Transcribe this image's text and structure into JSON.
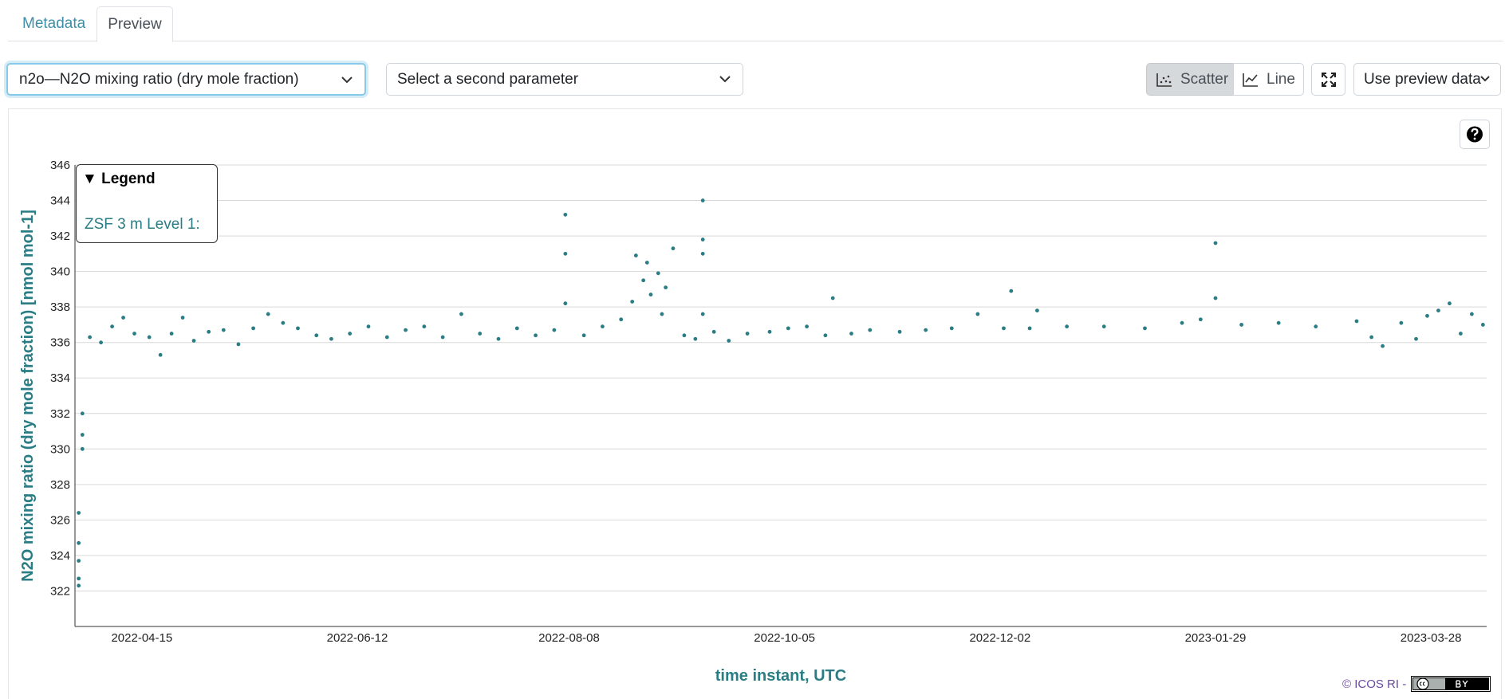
{
  "tabs": [
    {
      "label": "Metadata"
    },
    {
      "label": "Preview"
    }
  ],
  "controls": {
    "param1": "n2o—N2O mixing ratio (dry mole fraction)",
    "param2": "Select a second parameter",
    "scatter_label": "Scatter",
    "line_label": "Line",
    "preview_data_label": "Use preview data"
  },
  "icons": {
    "chevron": "chevron-down-icon",
    "scatter": "scatter-chart-icon",
    "line": "line-chart-icon",
    "expand": "expand-icon",
    "help": "question-circle-icon"
  },
  "legend": {
    "title": "▼ Legend",
    "entry": "ZSF 3 m Level 1:"
  },
  "credit": "© ICOS RI -",
  "colors": {
    "series": "#2a7d84",
    "tab_link": "#3f8fa6",
    "credit": "#6a4aa1"
  },
  "chart_data": {
    "type": "scatter",
    "title": "",
    "xlabel": "time instant, UTC",
    "ylabel": "N2O mixing ratio (dry mole fraction) [nmol mol-1]",
    "ylim": [
      320,
      346
    ],
    "yticks": [
      322,
      324,
      326,
      328,
      330,
      332,
      334,
      336,
      338,
      340,
      342,
      344,
      346
    ],
    "xlim": [
      "2022-03-28",
      "2023-04-12"
    ],
    "xticks": [
      "2022-04-15",
      "2022-06-12",
      "2022-08-08",
      "2022-10-05",
      "2022-12-02",
      "2023-01-29",
      "2023-03-28"
    ],
    "grid": true,
    "legend_position": "top-left",
    "series": [
      {
        "name": "ZSF 3 m Level 1",
        "points": [
          [
            "2022-03-29",
            322.3
          ],
          [
            "2022-03-29",
            322.7
          ],
          [
            "2022-03-29",
            323.7
          ],
          [
            "2022-03-29",
            324.7
          ],
          [
            "2022-03-29",
            326.4
          ],
          [
            "2022-03-30",
            330.0
          ],
          [
            "2022-03-30",
            330.8
          ],
          [
            "2022-03-30",
            332.0
          ],
          [
            "2022-04-01",
            336.3
          ],
          [
            "2022-04-04",
            336.0
          ],
          [
            "2022-04-07",
            336.9
          ],
          [
            "2022-04-10",
            337.4
          ],
          [
            "2022-04-13",
            336.5
          ],
          [
            "2022-04-17",
            336.3
          ],
          [
            "2022-04-20",
            335.3
          ],
          [
            "2022-04-23",
            336.5
          ],
          [
            "2022-04-26",
            337.4
          ],
          [
            "2022-04-29",
            336.1
          ],
          [
            "2022-05-03",
            336.6
          ],
          [
            "2022-05-07",
            336.7
          ],
          [
            "2022-05-11",
            335.9
          ],
          [
            "2022-05-15",
            336.8
          ],
          [
            "2022-05-19",
            337.6
          ],
          [
            "2022-05-23",
            337.1
          ],
          [
            "2022-05-27",
            336.8
          ],
          [
            "2022-06-01",
            336.4
          ],
          [
            "2022-06-05",
            336.2
          ],
          [
            "2022-06-10",
            336.5
          ],
          [
            "2022-06-15",
            336.9
          ],
          [
            "2022-06-20",
            336.3
          ],
          [
            "2022-06-25",
            336.7
          ],
          [
            "2022-06-30",
            336.9
          ],
          [
            "2022-07-05",
            336.3
          ],
          [
            "2022-07-10",
            337.6
          ],
          [
            "2022-07-15",
            336.5
          ],
          [
            "2022-07-20",
            336.2
          ],
          [
            "2022-07-25",
            336.8
          ],
          [
            "2022-07-30",
            336.4
          ],
          [
            "2022-08-04",
            336.7
          ],
          [
            "2022-08-07",
            338.2
          ],
          [
            "2022-08-07",
            341.0
          ],
          [
            "2022-08-07",
            343.2
          ],
          [
            "2022-08-12",
            336.4
          ],
          [
            "2022-08-17",
            336.9
          ],
          [
            "2022-08-22",
            337.3
          ],
          [
            "2022-08-25",
            338.3
          ],
          [
            "2022-08-26",
            340.9
          ],
          [
            "2022-08-28",
            339.5
          ],
          [
            "2022-08-29",
            340.5
          ],
          [
            "2022-08-30",
            338.7
          ],
          [
            "2022-09-01",
            339.9
          ],
          [
            "2022-09-02",
            337.6
          ],
          [
            "2022-09-03",
            339.1
          ],
          [
            "2022-09-05",
            341.3
          ],
          [
            "2022-09-08",
            336.4
          ],
          [
            "2022-09-11",
            336.2
          ],
          [
            "2022-09-13",
            341.0
          ],
          [
            "2022-09-13",
            341.8
          ],
          [
            "2022-09-13",
            344.0
          ],
          [
            "2022-09-13",
            337.6
          ],
          [
            "2022-09-16",
            336.6
          ],
          [
            "2022-09-20",
            336.1
          ],
          [
            "2022-09-25",
            336.5
          ],
          [
            "2022-10-01",
            336.6
          ],
          [
            "2022-10-06",
            336.8
          ],
          [
            "2022-10-11",
            336.9
          ],
          [
            "2022-10-16",
            336.4
          ],
          [
            "2022-10-18",
            338.5
          ],
          [
            "2022-10-23",
            336.5
          ],
          [
            "2022-10-28",
            336.7
          ],
          [
            "2022-11-05",
            336.6
          ],
          [
            "2022-11-12",
            336.7
          ],
          [
            "2022-11-19",
            336.8
          ],
          [
            "2022-11-26",
            337.6
          ],
          [
            "2022-12-03",
            336.8
          ],
          [
            "2022-12-05",
            338.9
          ],
          [
            "2022-12-10",
            336.8
          ],
          [
            "2022-12-12",
            337.8
          ],
          [
            "2022-12-20",
            336.9
          ],
          [
            "2022-12-30",
            336.9
          ],
          [
            "2023-01-10",
            336.8
          ],
          [
            "2023-01-20",
            337.1
          ],
          [
            "2023-01-25",
            337.3
          ],
          [
            "2023-01-29",
            341.6
          ],
          [
            "2023-01-29",
            338.5
          ],
          [
            "2023-02-05",
            337.0
          ],
          [
            "2023-02-15",
            337.1
          ],
          [
            "2023-02-25",
            336.9
          ],
          [
            "2023-03-08",
            337.2
          ],
          [
            "2023-03-12",
            336.3
          ],
          [
            "2023-03-15",
            335.8
          ],
          [
            "2023-03-20",
            337.1
          ],
          [
            "2023-03-24",
            336.2
          ],
          [
            "2023-03-27",
            337.5
          ],
          [
            "2023-03-30",
            337.8
          ],
          [
            "2023-04-02",
            338.2
          ],
          [
            "2023-04-05",
            336.5
          ],
          [
            "2023-04-08",
            337.6
          ],
          [
            "2023-04-11",
            337.0
          ]
        ]
      }
    ]
  }
}
